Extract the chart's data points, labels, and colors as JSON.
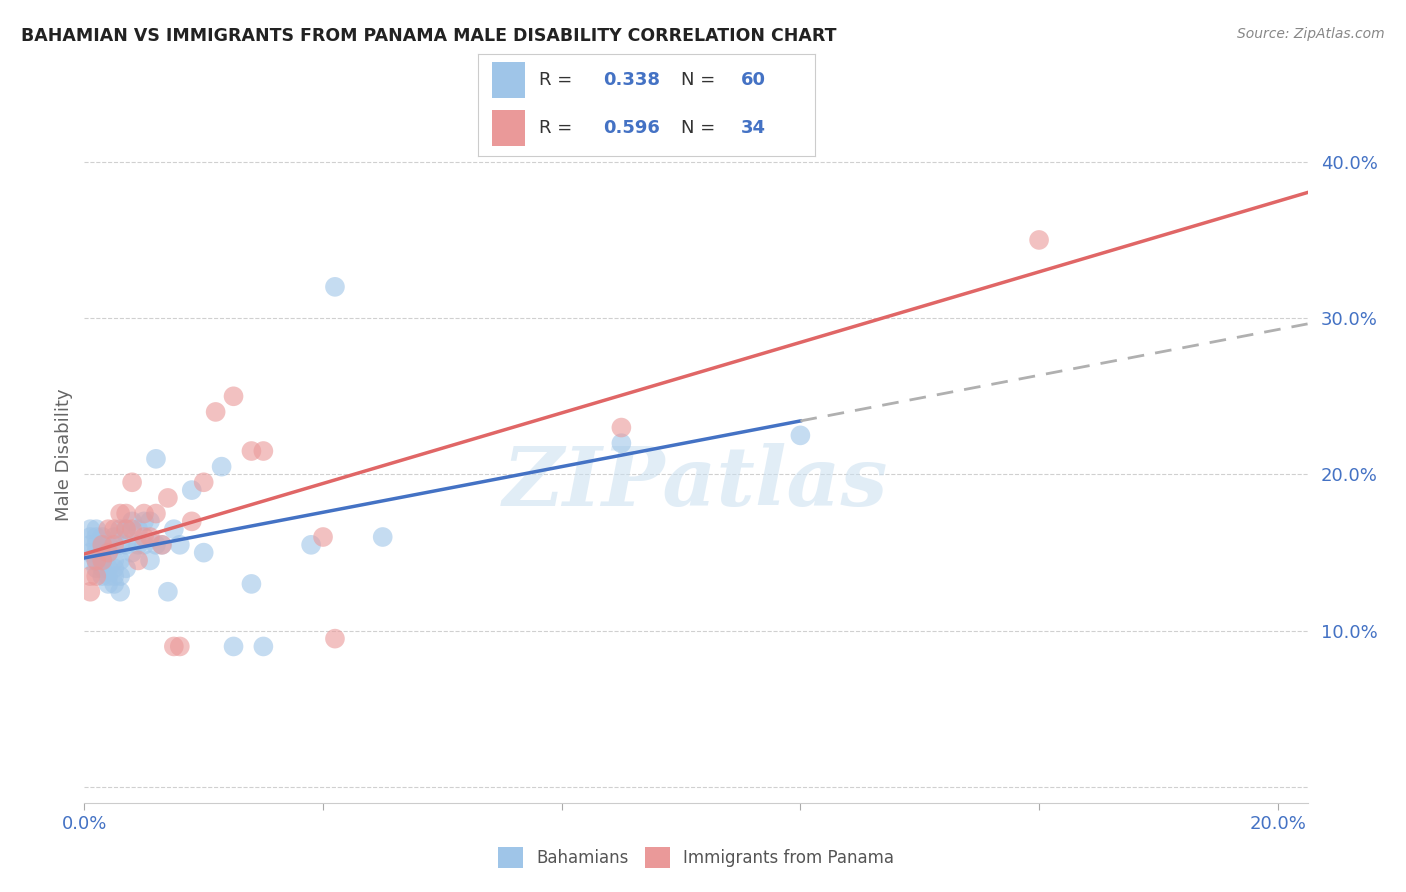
{
  "title": "BAHAMIAN VS IMMIGRANTS FROM PANAMA MALE DISABILITY CORRELATION CHART",
  "source": "Source: ZipAtlas.com",
  "ylabel": "Male Disability",
  "xlim": [
    0.0,
    0.205
  ],
  "ylim": [
    -0.01,
    0.435
  ],
  "xticks": [
    0.0,
    0.04,
    0.08,
    0.12,
    0.16,
    0.2
  ],
  "yticks": [
    0.0,
    0.1,
    0.2,
    0.3,
    0.4
  ],
  "ytick_labels": [
    "",
    "10.0%",
    "20.0%",
    "30.0%",
    "40.0%"
  ],
  "xtick_labels": [
    "0.0%",
    "",
    "",
    "",
    "",
    "20.0%"
  ],
  "watermark": "ZIPatlas",
  "legend_R1": "0.338",
  "legend_N1": "60",
  "legend_R2": "0.596",
  "legend_N2": "34",
  "color_blue": "#9fc5e8",
  "color_pink": "#ea9999",
  "color_blue_text": "#4472c4",
  "line_blue": "#4472c4",
  "line_pink": "#e06666",
  "line_dashed_color": "#b0b0b0",
  "bahamian_x": [
    0.001,
    0.001,
    0.001,
    0.001,
    0.001,
    0.002,
    0.002,
    0.002,
    0.002,
    0.002,
    0.002,
    0.003,
    0.003,
    0.003,
    0.003,
    0.003,
    0.003,
    0.004,
    0.004,
    0.004,
    0.004,
    0.004,
    0.005,
    0.005,
    0.005,
    0.005,
    0.005,
    0.006,
    0.006,
    0.006,
    0.006,
    0.006,
    0.007,
    0.007,
    0.007,
    0.008,
    0.008,
    0.009,
    0.009,
    0.01,
    0.01,
    0.011,
    0.011,
    0.012,
    0.012,
    0.013,
    0.014,
    0.015,
    0.016,
    0.018,
    0.02,
    0.023,
    0.025,
    0.028,
    0.03,
    0.038,
    0.042,
    0.05,
    0.09,
    0.12
  ],
  "bahamian_y": [
    0.145,
    0.15,
    0.155,
    0.16,
    0.165,
    0.14,
    0.145,
    0.15,
    0.155,
    0.16,
    0.165,
    0.135,
    0.14,
    0.145,
    0.15,
    0.155,
    0.16,
    0.13,
    0.135,
    0.14,
    0.15,
    0.155,
    0.13,
    0.135,
    0.14,
    0.145,
    0.16,
    0.125,
    0.135,
    0.145,
    0.155,
    0.165,
    0.14,
    0.155,
    0.165,
    0.15,
    0.17,
    0.155,
    0.165,
    0.155,
    0.17,
    0.145,
    0.17,
    0.155,
    0.21,
    0.155,
    0.125,
    0.165,
    0.155,
    0.19,
    0.15,
    0.205,
    0.09,
    0.13,
    0.09,
    0.155,
    0.32,
    0.16,
    0.22,
    0.225
  ],
  "panama_x": [
    0.001,
    0.001,
    0.002,
    0.002,
    0.003,
    0.003,
    0.004,
    0.004,
    0.005,
    0.005,
    0.006,
    0.007,
    0.007,
    0.008,
    0.008,
    0.009,
    0.01,
    0.01,
    0.011,
    0.012,
    0.013,
    0.014,
    0.015,
    0.016,
    0.018,
    0.02,
    0.022,
    0.025,
    0.028,
    0.03,
    0.04,
    0.042,
    0.09,
    0.16
  ],
  "panama_y": [
    0.125,
    0.135,
    0.135,
    0.145,
    0.145,
    0.155,
    0.15,
    0.165,
    0.155,
    0.165,
    0.175,
    0.165,
    0.175,
    0.165,
    0.195,
    0.145,
    0.16,
    0.175,
    0.16,
    0.175,
    0.155,
    0.185,
    0.09,
    0.09,
    0.17,
    0.195,
    0.24,
    0.25,
    0.215,
    0.215,
    0.16,
    0.095,
    0.23,
    0.35
  ],
  "blue_line_solid_end": 0.12,
  "blue_line_dashed_start": 0.12
}
